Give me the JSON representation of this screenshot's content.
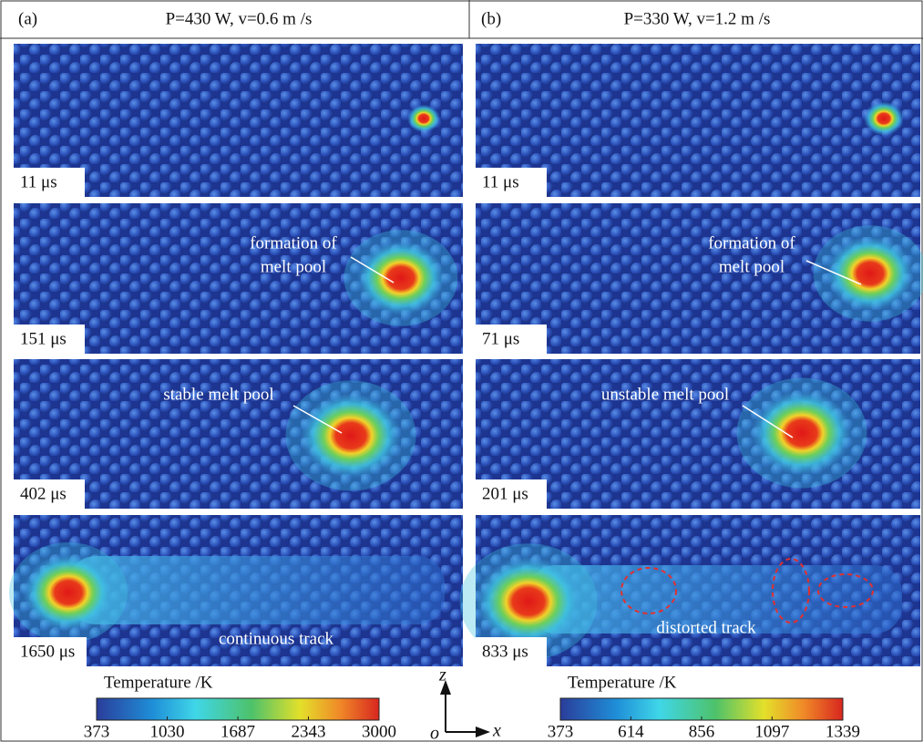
{
  "panels": [
    {
      "label": "(a)",
      "condition": "P=430 W, v=0.6 m /s",
      "frames": [
        {
          "time": "11 μs"
        },
        {
          "time": "151 μs",
          "annotation": [
            "formation of",
            "melt pool"
          ]
        },
        {
          "time": "402 μs",
          "annotation": [
            "stable melt pool"
          ]
        },
        {
          "time": "1650 μs",
          "annotation": [
            "continuous track"
          ]
        }
      ],
      "colorbar": {
        "title": "Temperature /K",
        "ticks": [
          373,
          1030,
          1687,
          2343,
          3000
        ]
      }
    },
    {
      "label": "(b)",
      "condition": "P=330 W, v=1.2 m /s",
      "frames": [
        {
          "time": "11 μs"
        },
        {
          "time": "71 μs",
          "annotation": [
            "formation of",
            "melt pool"
          ]
        },
        {
          "time": "201 μs",
          "annotation": [
            "unstable melt pool"
          ]
        },
        {
          "time": "833 μs",
          "annotation": [
            "distorted track"
          ]
        }
      ],
      "colorbar": {
        "title": "Temperature /K",
        "ticks": [
          373,
          614,
          856,
          1097,
          1339
        ]
      }
    }
  ],
  "axes": {
    "vertical": "z",
    "horizontal": "x",
    "origin": "o"
  }
}
